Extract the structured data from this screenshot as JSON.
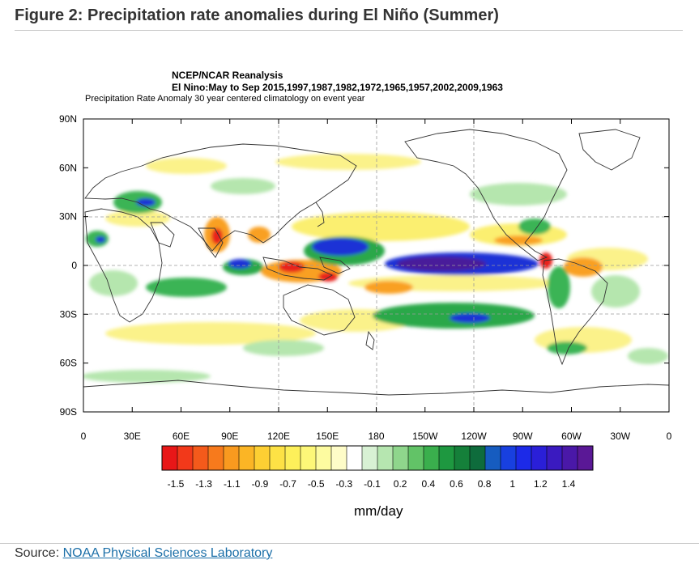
{
  "figure_title": "Figure 2: Precipitation rate anomalies during El Niño (Summer)",
  "map": {
    "title_line1": "NCEP/NCAR Reanalysis",
    "title_line2": "El Nino:May to Sep 2015,1997,1987,1982,1972,1965,1957,2002,2009,1963",
    "subtitle": "Precipitation Rate Anomaly 30 year centered climatology on event year",
    "lat_ticks": [
      "90N",
      "60N",
      "30N",
      "0",
      "30S",
      "60S",
      "90S"
    ],
    "lon_ticks": [
      "0",
      "30E",
      "60E",
      "90E",
      "120E",
      "150E",
      "180",
      "150W",
      "120W",
      "90W",
      "60W",
      "30W",
      "0"
    ],
    "colors": {
      "strong_negative": "#e8121b",
      "negative": "#fa8a10",
      "weak_negative": "#f7f58a",
      "weak_positive": "#a8e0a0",
      "positive": "#2aa84a",
      "strong_positive": "#1a2cd8",
      "extreme_positive": "#4a1a9a"
    }
  },
  "colorbar": {
    "labels": [
      "-1.5",
      "-1.3",
      "-1.1",
      "-0.9",
      "-0.7",
      "-0.5",
      "-0.3",
      "-0.1",
      "0.2",
      "0.4",
      "0.6",
      "0.8",
      "1",
      "1.2",
      "1.4"
    ],
    "colors": [
      "#e81718",
      "#f2391a",
      "#f45a1b",
      "#f77a1c",
      "#f99a1f",
      "#fbb525",
      "#fdcf33",
      "#fde245",
      "#fdf05a",
      "#fdf778",
      "#fdfba0",
      "#fefcc8",
      "#ffffff",
      "#d8f1d4",
      "#b6e6b0",
      "#8fd68c",
      "#62c367",
      "#3aaf4d",
      "#1e9840",
      "#15803a",
      "#0e6c3c",
      "#165cc0",
      "#1840e0",
      "#1c2ae8",
      "#2a1fd8",
      "#3a1ac0",
      "#4a18a8",
      "#5a1896"
    ],
    "units": "mm/day"
  },
  "source": {
    "prefix": "Source: ",
    "link_text": "NOAA Physical Sciences Laboratory"
  }
}
